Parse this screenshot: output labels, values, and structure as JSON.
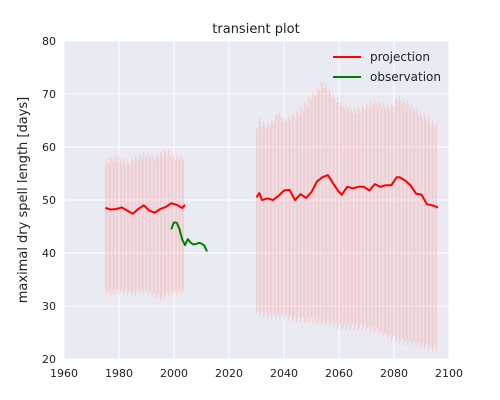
{
  "chart_data": {
    "type": "line",
    "title": "transient plot",
    "xlabel": "",
    "ylabel": "maximal dry spell length [days]",
    "xlim": [
      1960,
      2100
    ],
    "ylim": [
      20,
      80
    ],
    "xticks": [
      1960,
      1980,
      2000,
      2020,
      2040,
      2060,
      2080,
      2100
    ],
    "yticks": [
      20,
      30,
      40,
      50,
      60,
      70,
      80
    ],
    "grid": true,
    "legend_position": "top-right",
    "colors": {
      "background": "#eaeaf2",
      "grid": "#ffffff",
      "projection": "#ff0000",
      "observation": "#008000",
      "spread": "#f4b6b6"
    },
    "series": [
      {
        "name": "projection",
        "segments": [
          {
            "x": [
              1975,
              1977,
              1979,
              1981,
              1983,
              1985,
              1987,
              1989,
              1991,
              1993,
              1995,
              1997,
              1999,
              2001,
              2003,
              2004
            ],
            "y": [
              48.5,
              48.2,
              48.3,
              48.6,
              48.0,
              47.4,
              48.3,
              49.0,
              48.0,
              47.6,
              48.3,
              48.7,
              49.4,
              49.1,
              48.5,
              49.1
            ],
            "lower": [
              32.5,
              32.4,
              32.7,
              32.6,
              32.5,
              32.4,
              32.6,
              32.6,
              32.5,
              32.0,
              31.5,
              32.0,
              32.5,
              32.5,
              32.5,
              32.5
            ],
            "upper": [
              57.0,
              57.5,
              58.0,
              57.5,
              57.0,
              57.5,
              58.0,
              58.5,
              58.5,
              58.0,
              58.5,
              59.0,
              58.5,
              58.0,
              58.0,
              58.0
            ]
          },
          {
            "x": [
              2030,
              2031,
              2032,
              2034,
              2036,
              2038,
              2040,
              2042,
              2044,
              2046,
              2048,
              2050,
              2052,
              2054,
              2056,
              2058,
              2060,
              2061,
              2063,
              2065,
              2067,
              2069,
              2071,
              2073,
              2075,
              2077,
              2079,
              2081,
              2082,
              2084,
              2086,
              2088,
              2090,
              2092,
              2094,
              2096
            ],
            "y": [
              50.5,
              51.3,
              50.0,
              50.3,
              50.0,
              50.8,
              51.8,
              51.9,
              50.0,
              51.1,
              50.4,
              51.5,
              53.5,
              54.3,
              54.7,
              53.0,
              51.5,
              51.0,
              52.5,
              52.2,
              52.5,
              52.5,
              51.8,
              53.0,
              52.5,
              52.8,
              52.8,
              54.3,
              54.3,
              53.7,
              52.8,
              51.2,
              51.0,
              49.2,
              49.0,
              48.6
            ],
            "lower": [
              28.5,
              28.5,
              28.3,
              28.0,
              28.0,
              27.9,
              28.0,
              27.8,
              27.5,
              27.5,
              27.3,
              27.2,
              27.0,
              26.8,
              26.6,
              26.4,
              26.2,
              26.0,
              26.0,
              26.0,
              26.0,
              26.0,
              25.8,
              25.5,
              25.0,
              24.5,
              24.0,
              23.5,
              23.5,
              23.2,
              23.0,
              22.8,
              22.5,
              22.2,
              22.0,
              22.0
            ],
            "upper": [
              63.5,
              65.0,
              64.5,
              64.0,
              65.0,
              66.5,
              65.0,
              65.5,
              66.0,
              67.0,
              68.0,
              69.5,
              70.5,
              72.0,
              71.0,
              69.5,
              68.5,
              68.0,
              67.5,
              67.0,
              67.0,
              67.5,
              68.0,
              68.5,
              68.0,
              67.5,
              67.5,
              69.0,
              69.0,
              68.5,
              68.0,
              67.0,
              66.0,
              65.5,
              64.5,
              64.0
            ]
          }
        ]
      },
      {
        "name": "observation",
        "segments": [
          {
            "x": [
              1999,
              2000,
              2001,
              2002,
              2003,
              2004,
              2005,
              2006,
              2007,
              2008,
              2009,
              2010,
              2011,
              2012
            ],
            "y": [
              44.5,
              45.8,
              45.7,
              44.5,
              42.5,
              41.5,
              42.6,
              42.0,
              41.6,
              41.7,
              41.9,
              41.8,
              41.4,
              40.3
            ]
          }
        ]
      }
    ]
  }
}
